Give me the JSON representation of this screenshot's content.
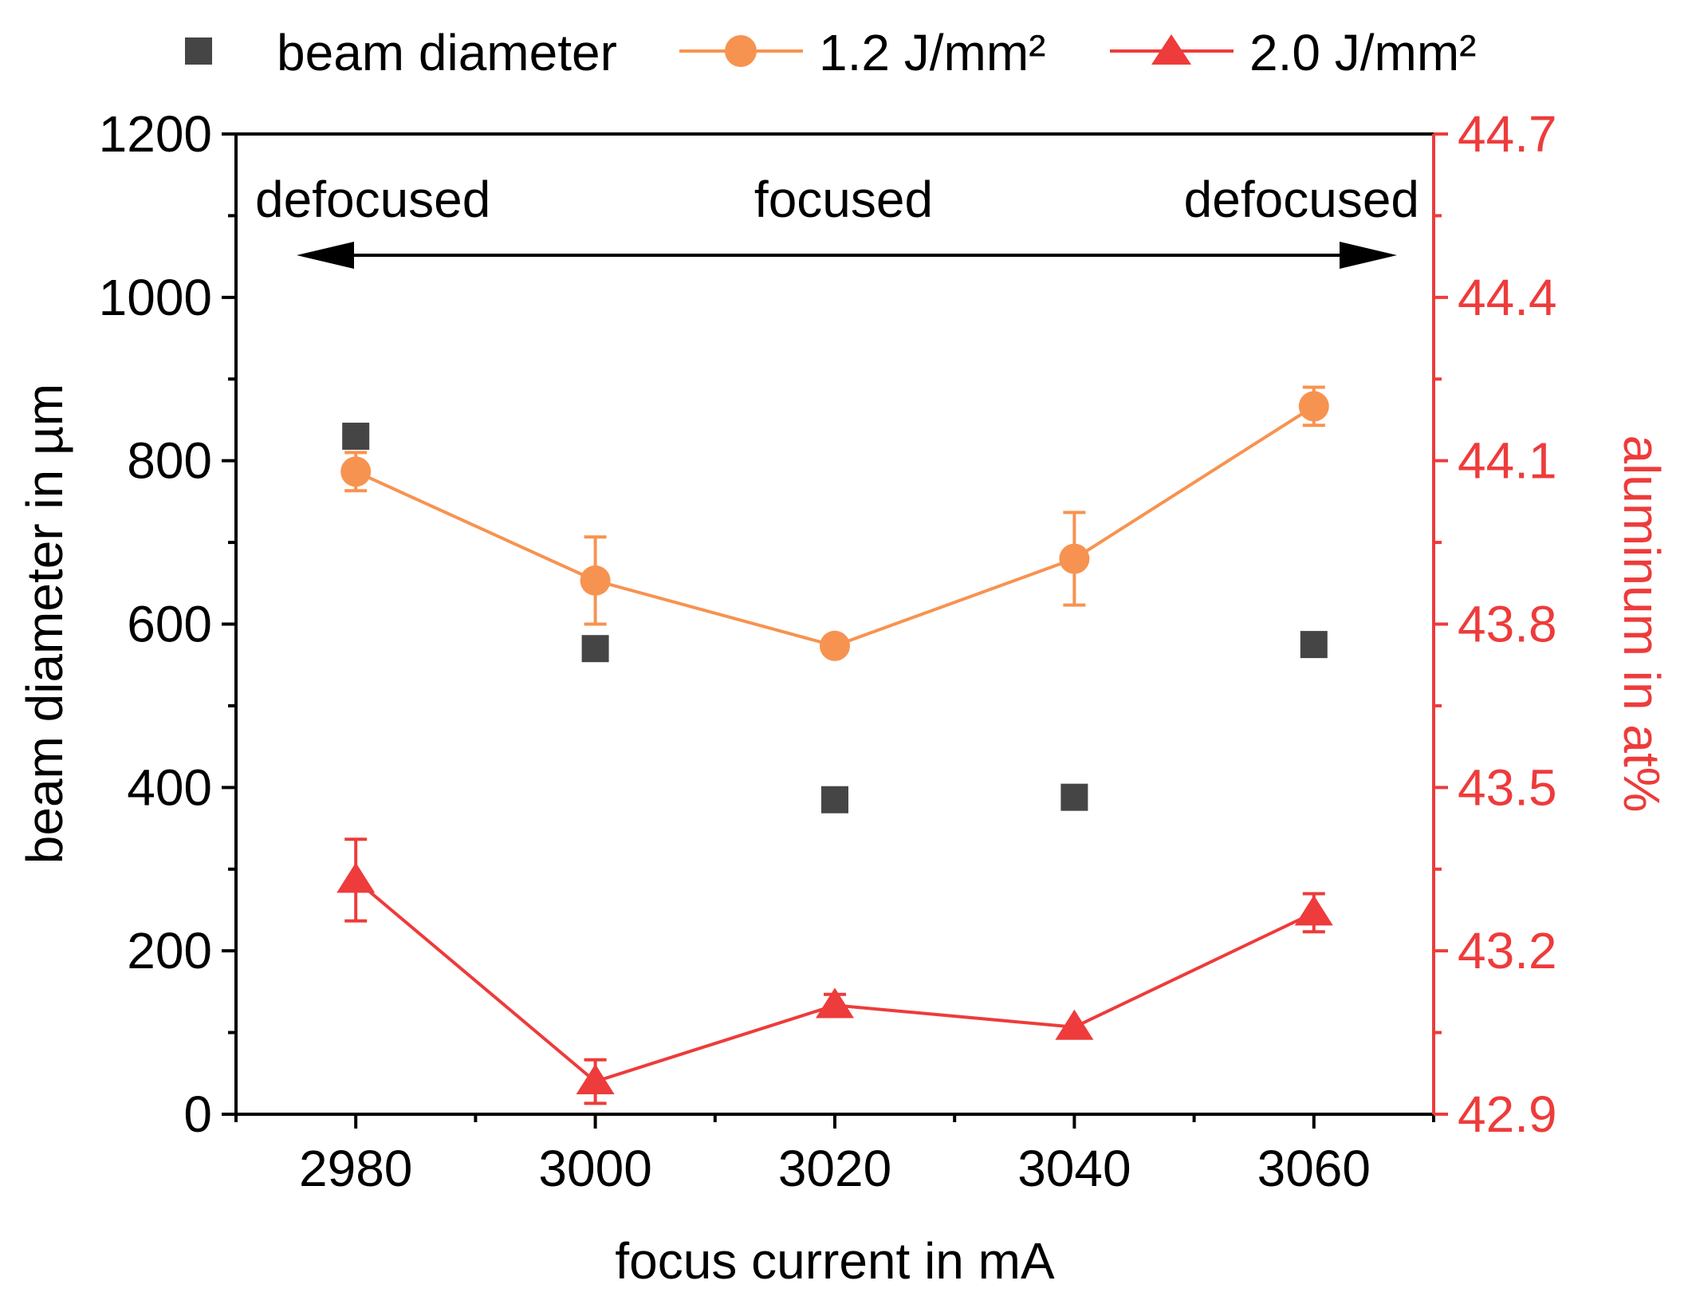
{
  "colors": {
    "axis": "#000000",
    "right_axis": "#ee3b3b",
    "beam_diameter": "#454545",
    "series_1_2": "#f79350",
    "series_2_0": "#ee3b3b"
  },
  "chart_data": {
    "type": "scatter",
    "x": [
      2980,
      3000,
      3020,
      3040,
      3060
    ],
    "xlabel": "focus current in mA",
    "ylabel": "beam diameter in µm",
    "y2label": "aluminum in at%",
    "xlim": [
      2970,
      3070
    ],
    "ylim": [
      0,
      1200
    ],
    "y2lim": [
      42.9,
      44.7
    ],
    "x_ticks": [
      "2980",
      "3000",
      "3020",
      "3040",
      "3060"
    ],
    "y_ticks": [
      "0",
      "200",
      "400",
      "600",
      "800",
      "1000",
      "1200"
    ],
    "y2_ticks": [
      "42.9",
      "43.2",
      "43.5",
      "43.8",
      "44.1",
      "44.4",
      "44.7"
    ],
    "legend_position": "top",
    "series": [
      {
        "name": "beam diameter",
        "axis": "left",
        "marker": "square",
        "line": false,
        "values": [
          830,
          570,
          385,
          388,
          575
        ]
      },
      {
        "name": "1.2 J/mm²",
        "axis": "right",
        "marker": "circle",
        "line": true,
        "values": [
          44.08,
          43.88,
          43.76,
          43.92,
          44.2
        ],
        "errors": [
          0.035,
          0.08,
          0.01,
          0.085,
          0.035
        ]
      },
      {
        "name": "2.0 J/mm²",
        "axis": "right",
        "marker": "triangle",
        "line": true,
        "values": [
          43.33,
          42.96,
          43.1,
          43.06,
          43.27
        ],
        "errors": [
          0.075,
          0.04,
          0.02,
          0.0,
          0.035
        ]
      }
    ],
    "annotations": {
      "left": "defocused",
      "center": "focused",
      "right": "defocused"
    }
  }
}
